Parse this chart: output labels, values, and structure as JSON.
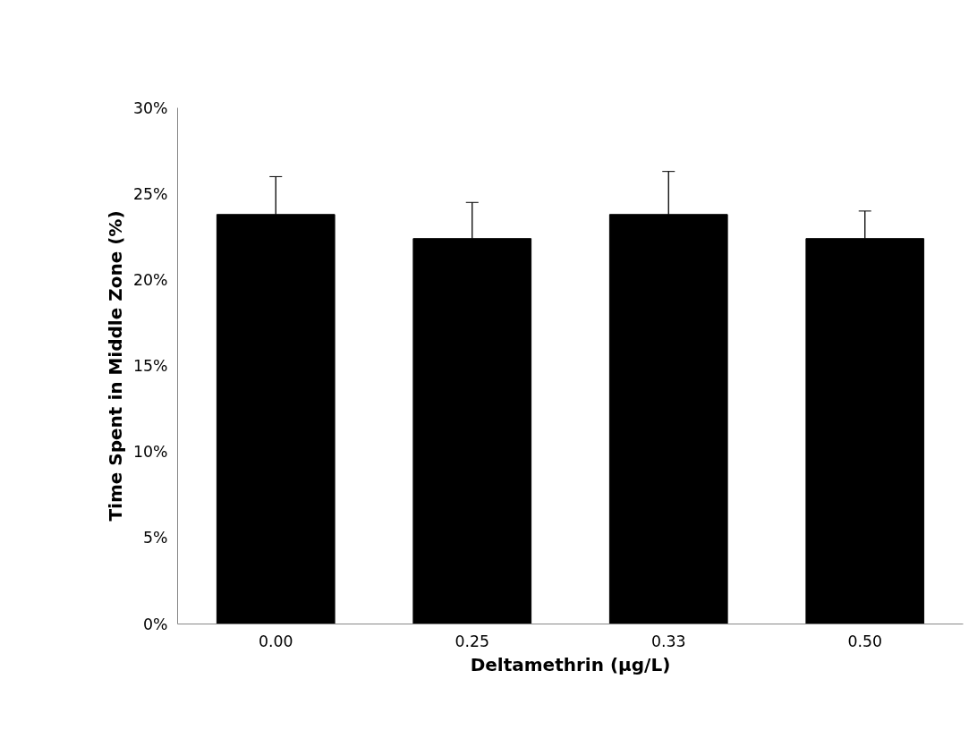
{
  "chart_data": {
    "type": "bar",
    "xlabel": "Deltamethrin (µg/L)",
    "ylabel": "Time Spent in Middle Zone (%)",
    "categories": [
      "0.00",
      "0.25",
      "0.33",
      "0.50"
    ],
    "values": [
      23.8,
      22.4,
      23.8,
      22.4
    ],
    "errors": [
      [
        23.8,
        26.0
      ],
      [
        22.4,
        24.5
      ],
      [
        23.8,
        26.3
      ],
      [
        22.4,
        24.0
      ]
    ],
    "color": "#000000",
    "ylim": [
      0,
      30
    ],
    "yticks": [
      {
        "value": 0,
        "label": "0%"
      },
      {
        "value": 5,
        "label": "5%"
      },
      {
        "value": 10,
        "label": "10%"
      },
      {
        "value": 15,
        "label": "15%"
      },
      {
        "value": 20,
        "label": "20%"
      },
      {
        "value": 25,
        "label": "25%"
      },
      {
        "value": 30,
        "label": "30%"
      }
    ],
    "grid": false
  }
}
